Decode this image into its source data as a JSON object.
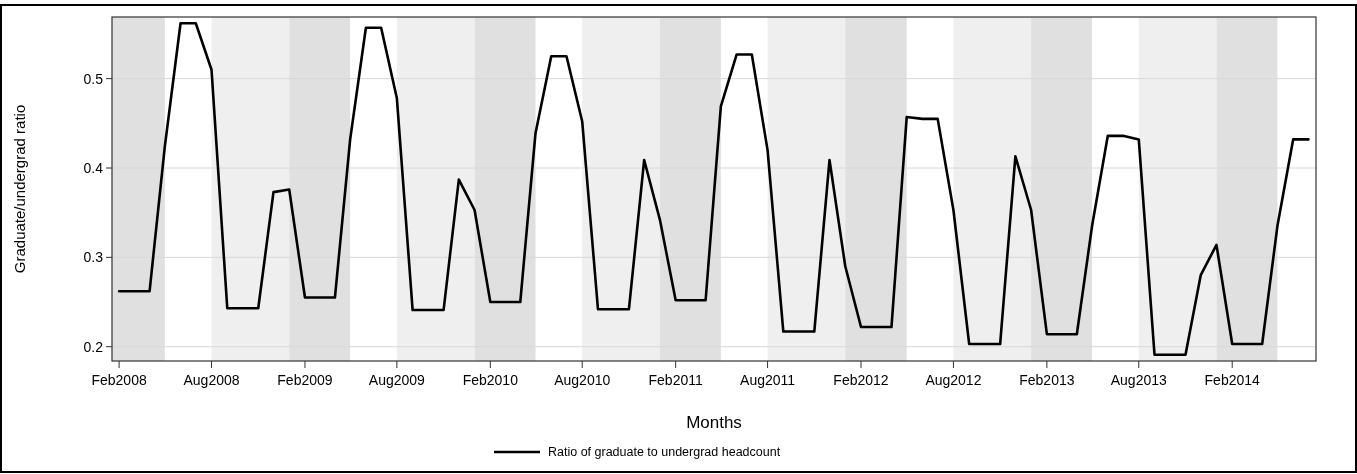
{
  "chart_data": {
    "type": "line",
    "xlabel": "Months",
    "ylabel": "Graduate/undergrad ratio",
    "x": [
      "2008-02",
      "2008-03",
      "2008-04",
      "2008-05",
      "2008-06",
      "2008-07",
      "2008-08",
      "2008-09",
      "2008-10",
      "2008-11",
      "2008-12",
      "2009-01",
      "2009-02",
      "2009-03",
      "2009-04",
      "2009-05",
      "2009-06",
      "2009-07",
      "2009-08",
      "2009-09",
      "2009-10",
      "2009-11",
      "2009-12",
      "2010-01",
      "2010-02",
      "2010-03",
      "2010-04",
      "2010-05",
      "2010-06",
      "2010-07",
      "2010-08",
      "2010-09",
      "2010-10",
      "2010-11",
      "2010-12",
      "2011-01",
      "2011-02",
      "2011-03",
      "2011-04",
      "2011-05",
      "2011-06",
      "2011-07",
      "2011-08",
      "2011-09",
      "2011-10",
      "2011-11",
      "2011-12",
      "2012-01",
      "2012-02",
      "2012-03",
      "2012-04",
      "2012-05",
      "2012-06",
      "2012-07",
      "2012-08",
      "2012-09",
      "2012-10",
      "2012-11",
      "2012-12",
      "2013-01",
      "2013-02",
      "2013-03",
      "2013-04",
      "2013-05",
      "2013-06",
      "2013-07",
      "2013-08",
      "2013-09",
      "2013-10",
      "2013-11",
      "2013-12",
      "2014-01",
      "2014-02",
      "2014-03",
      "2014-04",
      "2014-05",
      "2014-06",
      "2014-07"
    ],
    "series": [
      {
        "name": "Ratio of graduate to undergrad headcount",
        "color": "#000000",
        "values": [
          0.262,
          0.262,
          0.262,
          0.424,
          0.562,
          0.562,
          0.51,
          0.243,
          0.243,
          0.243,
          0.373,
          0.376,
          0.255,
          0.255,
          0.255,
          0.432,
          0.557,
          0.557,
          0.478,
          0.241,
          0.241,
          0.241,
          0.387,
          0.353,
          0.25,
          0.25,
          0.25,
          0.439,
          0.525,
          0.525,
          0.452,
          0.242,
          0.242,
          0.242,
          0.409,
          0.342,
          0.252,
          0.252,
          0.252,
          0.469,
          0.527,
          0.527,
          0.42,
          0.217,
          0.217,
          0.217,
          0.409,
          0.29,
          0.222,
          0.222,
          0.222,
          0.457,
          0.455,
          0.455,
          0.353,
          0.203,
          0.203,
          0.203,
          0.413,
          0.353,
          0.214,
          0.214,
          0.214,
          0.335,
          0.436,
          0.436,
          0.432,
          0.191,
          0.191,
          0.191,
          0.28,
          0.314,
          0.203,
          0.203,
          0.203,
          0.335,
          0.432,
          0.432
        ]
      }
    ],
    "xlim": [
      "2008-01-18",
      "2014-07-16"
    ],
    "xticks": [
      {
        "value": "2008-02",
        "label": "Feb2008"
      },
      {
        "value": "2008-08",
        "label": "Aug2008"
      },
      {
        "value": "2009-02",
        "label": "Feb2009"
      },
      {
        "value": "2009-08",
        "label": "Aug2009"
      },
      {
        "value": "2010-02",
        "label": "Feb2010"
      },
      {
        "value": "2010-08",
        "label": "Aug2010"
      },
      {
        "value": "2011-02",
        "label": "Feb2011"
      },
      {
        "value": "2011-08",
        "label": "Aug2011"
      },
      {
        "value": "2012-02",
        "label": "Feb2012"
      },
      {
        "value": "2012-08",
        "label": "Aug2012"
      },
      {
        "value": "2013-02",
        "label": "Feb2013"
      },
      {
        "value": "2013-08",
        "label": "Aug2013"
      },
      {
        "value": "2014-02",
        "label": "Feb2014"
      }
    ],
    "ylim": [
      0.184,
      0.569
    ],
    "yticks": [
      {
        "value": 0.2,
        "label": "0.2"
      },
      {
        "value": 0.3,
        "label": "0.3"
      },
      {
        "value": 0.4,
        "label": "0.4"
      },
      {
        "value": 0.5,
        "label": "0.5"
      }
    ],
    "bands": [
      {
        "axis": "x",
        "from": "2008-01-18",
        "to": "2008-05",
        "color": "#e0e0e0"
      },
      {
        "axis": "x",
        "from": "2008-08",
        "to": "2009-01",
        "color": "#efefef"
      },
      {
        "axis": "x",
        "from": "2009-01",
        "to": "2009-05",
        "color": "#e0e0e0"
      },
      {
        "axis": "x",
        "from": "2009-08",
        "to": "2010-01",
        "color": "#efefef"
      },
      {
        "axis": "x",
        "from": "2010-01",
        "to": "2010-05",
        "color": "#e0e0e0"
      },
      {
        "axis": "x",
        "from": "2010-08",
        "to": "2011-01",
        "color": "#efefef"
      },
      {
        "axis": "x",
        "from": "2011-01",
        "to": "2011-05",
        "color": "#e0e0e0"
      },
      {
        "axis": "x",
        "from": "2011-08",
        "to": "2012-01",
        "color": "#efefef"
      },
      {
        "axis": "x",
        "from": "2012-01",
        "to": "2012-05",
        "color": "#e0e0e0"
      },
      {
        "axis": "x",
        "from": "2012-08",
        "to": "2013-01",
        "color": "#efefef"
      },
      {
        "axis": "x",
        "from": "2013-01",
        "to": "2013-05",
        "color": "#e0e0e0"
      },
      {
        "axis": "x",
        "from": "2013-08",
        "to": "2014-01",
        "color": "#efefef"
      },
      {
        "axis": "x",
        "from": "2014-01",
        "to": "2014-05",
        "color": "#e0e0e0"
      }
    ],
    "grid": "y",
    "legend": "bottom",
    "line_style": "solid",
    "marker": "none"
  }
}
